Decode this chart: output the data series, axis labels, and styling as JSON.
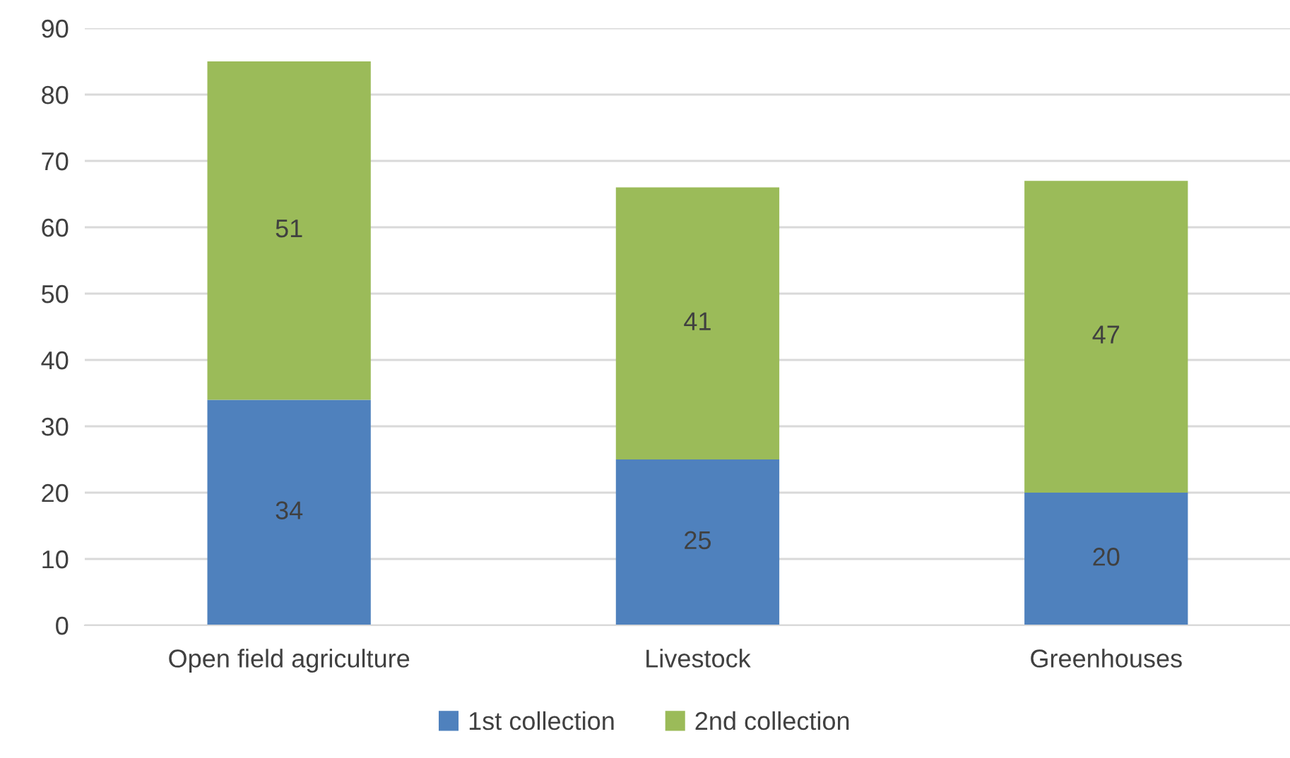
{
  "chart_data": {
    "type": "bar",
    "stacked": true,
    "categories": [
      "Open field agriculture",
      "Livestock",
      "Greenhouses"
    ],
    "series": [
      {
        "name": "1st collection",
        "color": "#4f81bd",
        "values": [
          34,
          25,
          20
        ]
      },
      {
        "name": "2nd collection",
        "color": "#9bbb59",
        "values": [
          51,
          41,
          47
        ]
      }
    ],
    "ylim": [
      0,
      90
    ],
    "yticks": [
      0,
      10,
      20,
      30,
      40,
      50,
      60,
      70,
      80,
      90
    ],
    "grid": "y",
    "legend": "bottom",
    "data_labels": true
  }
}
